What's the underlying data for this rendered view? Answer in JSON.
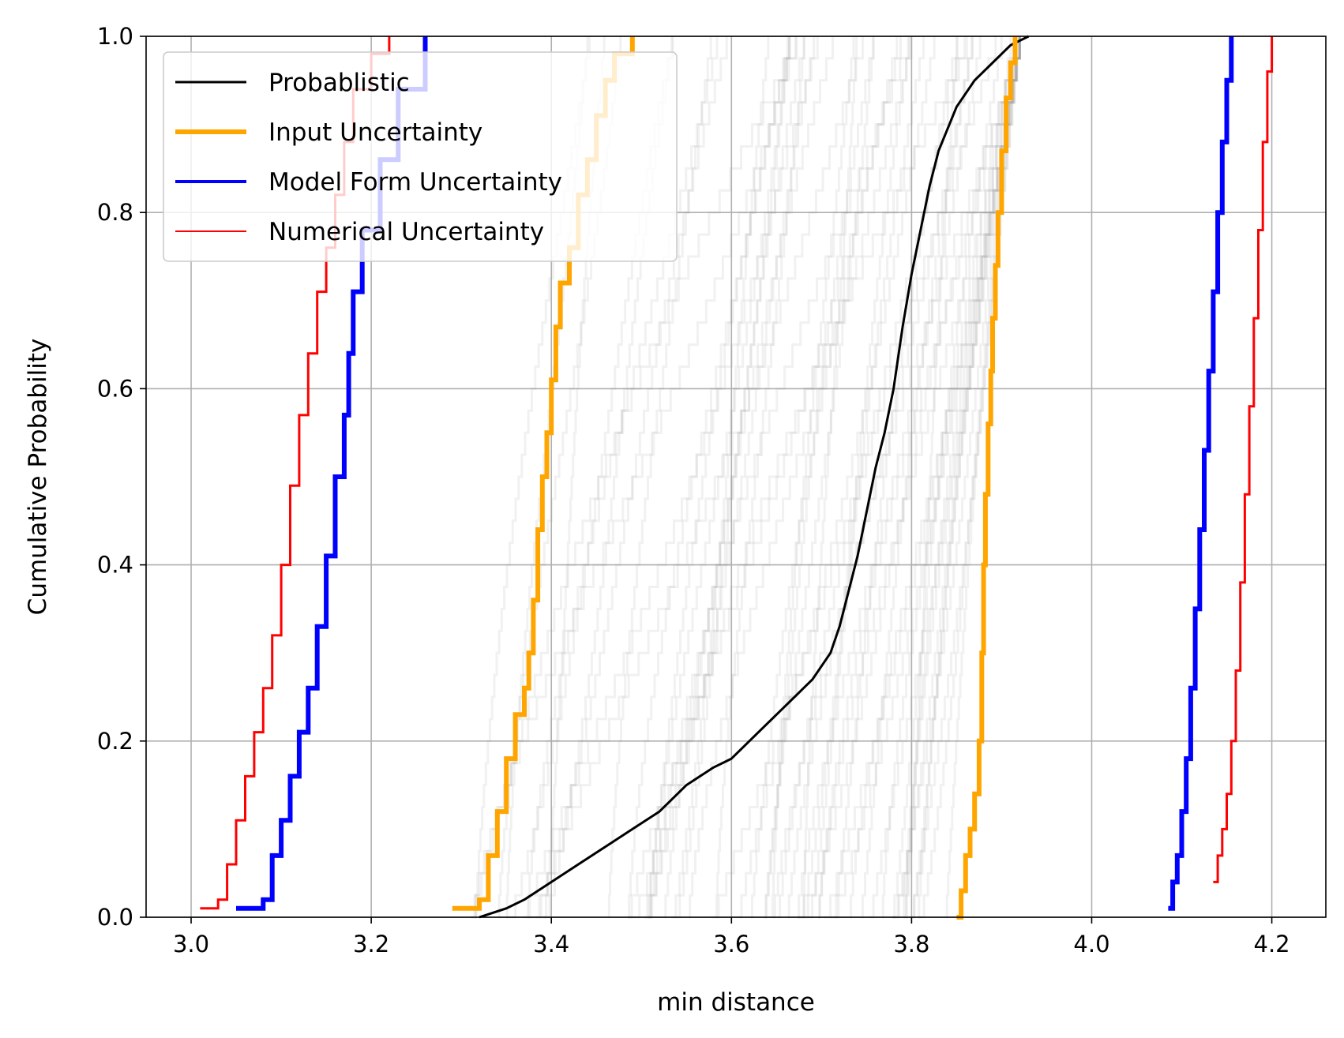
{
  "chart_data": {
    "type": "line",
    "subtype": "empirical-cdf",
    "title": "",
    "xlabel": "min distance",
    "ylabel": "Cumulative Probability",
    "xlim": [
      2.95,
      4.26
    ],
    "ylim": [
      0.0,
      1.0
    ],
    "xticks": [
      3.0,
      3.2,
      3.4,
      3.6,
      3.8,
      4.0,
      4.2
    ],
    "xtick_labels": [
      "3.0",
      "3.2",
      "3.4",
      "3.6",
      "3.8",
      "4.0",
      "4.2"
    ],
    "yticks": [
      0.0,
      0.2,
      0.4,
      0.6,
      0.8,
      1.0
    ],
    "ytick_labels": [
      "0.0",
      "0.2",
      "0.4",
      "0.6",
      "0.8",
      "1.0"
    ],
    "grid": true,
    "legend_position": "upper-left",
    "series": [
      {
        "name": "Probablistic",
        "color": "#000000",
        "linewidth": 2,
        "x": [
          3.32,
          3.35,
          3.37,
          3.4,
          3.43,
          3.46,
          3.49,
          3.52,
          3.55,
          3.58,
          3.6,
          3.63,
          3.66,
          3.69,
          3.71,
          3.72,
          3.73,
          3.74,
          3.75,
          3.76,
          3.77,
          3.78,
          3.79,
          3.8,
          3.81,
          3.82,
          3.83,
          3.85,
          3.87,
          3.89,
          3.91,
          3.93
        ],
        "y": [
          0.0,
          0.01,
          0.02,
          0.04,
          0.06,
          0.08,
          0.1,
          0.12,
          0.15,
          0.17,
          0.18,
          0.21,
          0.24,
          0.27,
          0.3,
          0.33,
          0.37,
          0.41,
          0.46,
          0.51,
          0.55,
          0.6,
          0.67,
          0.73,
          0.78,
          0.83,
          0.87,
          0.92,
          0.95,
          0.97,
          0.99,
          1.0
        ]
      },
      {
        "name": "Input Uncertainty",
        "color": "#FFA500",
        "linewidth": 4,
        "bounds": [
          {
            "x": [
              3.29,
              3.32,
              3.33,
              3.34,
              3.35,
              3.36,
              3.37,
              3.375,
              3.38,
              3.385,
              3.39,
              3.395,
              3.4,
              3.405,
              3.41,
              3.42,
              3.43,
              3.44,
              3.45,
              3.46,
              3.47,
              3.49
            ],
            "y": [
              0.01,
              0.02,
              0.07,
              0.12,
              0.18,
              0.23,
              0.26,
              0.3,
              0.36,
              0.44,
              0.5,
              0.55,
              0.61,
              0.67,
              0.72,
              0.76,
              0.82,
              0.86,
              0.91,
              0.95,
              0.98,
              1.0
            ]
          },
          {
            "x": [
              3.85,
              3.855,
              3.86,
              3.865,
              3.87,
              3.875,
              3.878,
              3.88,
              3.882,
              3.885,
              3.888,
              3.89,
              3.893,
              3.896,
              3.9,
              3.905,
              3.91,
              3.915
            ],
            "y": [
              0.0,
              0.03,
              0.07,
              0.1,
              0.14,
              0.2,
              0.3,
              0.4,
              0.48,
              0.56,
              0.62,
              0.68,
              0.74,
              0.8,
              0.87,
              0.93,
              0.97,
              1.0
            ]
          }
        ]
      },
      {
        "name": "Model Form Uncertainty",
        "color": "#0000FF",
        "linewidth": 4,
        "bounds": [
          {
            "x": [
              3.05,
              3.08,
              3.09,
              3.1,
              3.11,
              3.12,
              3.13,
              3.14,
              3.15,
              3.16,
              3.17,
              3.175,
              3.18,
              3.19,
              3.21,
              3.23,
              3.26
            ],
            "y": [
              0.01,
              0.02,
              0.07,
              0.11,
              0.16,
              0.21,
              0.26,
              0.33,
              0.41,
              0.5,
              0.57,
              0.64,
              0.71,
              0.78,
              0.86,
              0.94,
              1.0
            ]
          },
          {
            "x": [
              4.085,
              4.09,
              4.095,
              4.1,
              4.105,
              4.11,
              4.115,
              4.12,
              4.125,
              4.13,
              4.135,
              4.14,
              4.145,
              4.15,
              4.155
            ],
            "y": [
              0.01,
              0.04,
              0.07,
              0.12,
              0.18,
              0.26,
              0.35,
              0.44,
              0.53,
              0.62,
              0.71,
              0.8,
              0.88,
              0.95,
              1.0
            ]
          }
        ]
      },
      {
        "name": "Numerical Uncertainty",
        "color": "#FF0000",
        "linewidth": 2,
        "bounds": [
          {
            "x": [
              3.01,
              3.03,
              3.04,
              3.05,
              3.06,
              3.07,
              3.08,
              3.09,
              3.1,
              3.11,
              3.12,
              3.13,
              3.14,
              3.15,
              3.16,
              3.17,
              3.18,
              3.2,
              3.22
            ],
            "y": [
              0.01,
              0.02,
              0.06,
              0.11,
              0.16,
              0.21,
              0.26,
              0.32,
              0.4,
              0.49,
              0.57,
              0.64,
              0.71,
              0.76,
              0.82,
              0.88,
              0.94,
              0.98,
              1.0
            ]
          },
          {
            "x": [
              4.135,
              4.14,
              4.145,
              4.15,
              4.155,
              4.16,
              4.165,
              4.17,
              4.175,
              4.18,
              4.185,
              4.19,
              4.195,
              4.2
            ],
            "y": [
              0.04,
              0.07,
              0.1,
              0.14,
              0.2,
              0.28,
              0.38,
              0.48,
              0.58,
              0.68,
              0.78,
              0.88,
              0.96,
              1.0
            ]
          }
        ]
      }
    ],
    "background_ensemble": {
      "color": "#9a9a9a",
      "opacity": 0.14,
      "count": 60,
      "x_start_range": [
        3.31,
        3.84
      ],
      "x_end_range": [
        3.44,
        3.92
      ]
    }
  },
  "legend": {
    "items": [
      {
        "label": "Probablistic",
        "color": "#000000",
        "width": 3
      },
      {
        "label": "Input Uncertainty",
        "color": "#FFA500",
        "width": 6
      },
      {
        "label": "Model Form Uncertainty",
        "color": "#0000FF",
        "width": 4
      },
      {
        "label": "Numerical Uncertainty",
        "color": "#FF0000",
        "width": 2
      }
    ]
  }
}
